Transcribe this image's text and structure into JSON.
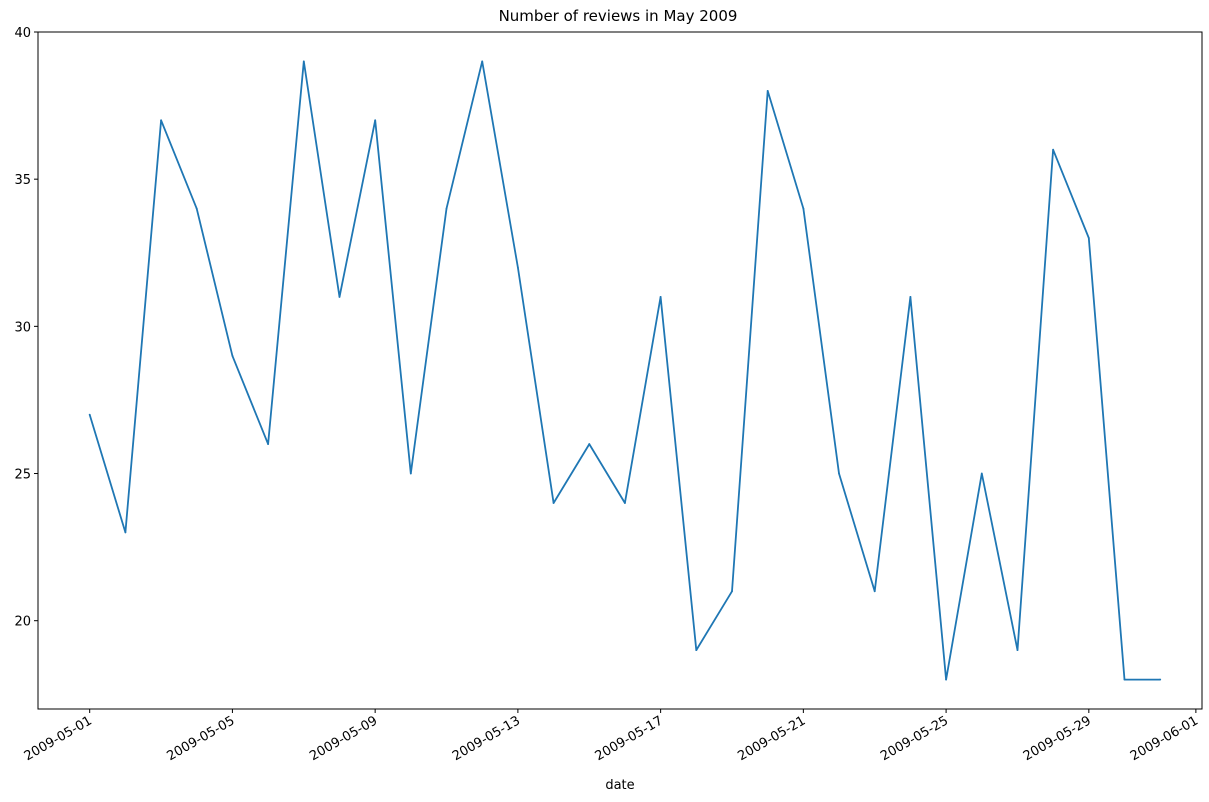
{
  "chart_data": {
    "type": "line",
    "title": "Number of reviews in May 2009",
    "xlabel": "date",
    "ylabel": "",
    "x_tick_labels": [
      "2009-05-01",
      "2009-05-05",
      "2009-05-09",
      "2009-05-13",
      "2009-05-17",
      "2009-05-21",
      "2009-05-25",
      "2009-05-29",
      "2009-06-01"
    ],
    "y_ticks": [
      20,
      25,
      30,
      35,
      40
    ],
    "xlim": [
      "2009-04-30",
      "2009-06-01"
    ],
    "ylim": [
      17,
      40
    ],
    "grid": false,
    "legend": "none",
    "line_color": "#1f77b4",
    "series": [
      {
        "x": [
          "2009-05-01",
          "2009-05-02",
          "2009-05-03",
          "2009-05-04",
          "2009-05-05",
          "2009-05-06",
          "2009-05-07",
          "2009-05-08",
          "2009-05-09",
          "2009-05-10",
          "2009-05-11",
          "2009-05-12",
          "2009-05-13",
          "2009-05-14",
          "2009-05-15",
          "2009-05-16",
          "2009-05-17",
          "2009-05-18",
          "2009-05-19",
          "2009-05-20",
          "2009-05-21",
          "2009-05-22",
          "2009-05-23",
          "2009-05-24",
          "2009-05-25",
          "2009-05-26",
          "2009-05-27",
          "2009-05-28",
          "2009-05-29",
          "2009-05-30",
          "2009-05-31"
        ],
        "values": [
          27,
          23,
          37,
          34,
          29,
          26,
          39,
          31,
          37,
          25,
          34,
          39,
          32,
          24,
          26,
          24,
          31,
          19,
          21,
          38,
          34,
          25,
          21,
          31,
          18,
          25,
          19,
          36,
          33,
          18,
          18
        ]
      }
    ]
  }
}
